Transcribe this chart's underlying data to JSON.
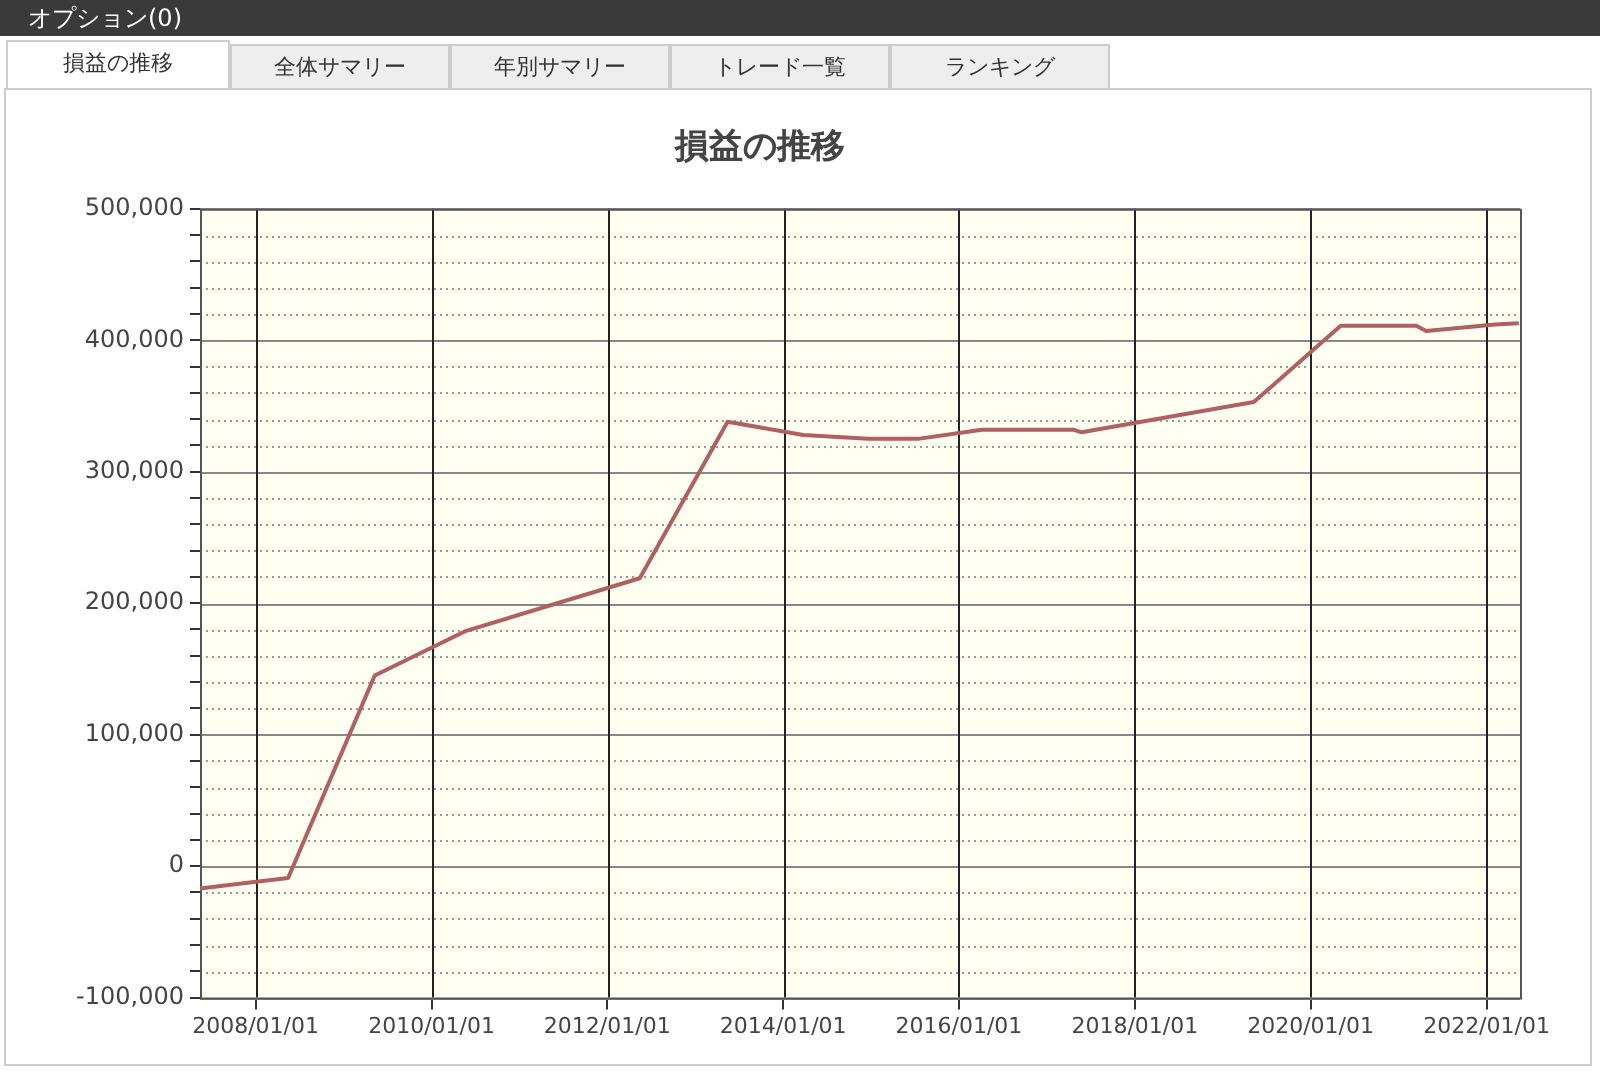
{
  "chart_data": {
    "type": "line",
    "title": "損益の推移",
    "annotations": [
      "オプション(0)",
      "損益の推移",
      "全体サマリー",
      "年別サマリー",
      "トレード一覧",
      "ランキング"
    ],
    "x": [
      "2007-05-15",
      "2008-05-15",
      "2009-05-10",
      "2010-05-25",
      "2012-05-15",
      "2013-05-15",
      "2014-03-25",
      "2014-12-20",
      "2015-07-15",
      "2016-04-05",
      "2017-04-20",
      "2017-05-25",
      "2019-05-10",
      "2020-05-05",
      "2021-03-15",
      "2021-04-25",
      "2022-02-05",
      "2022-05-15"
    ],
    "series": [
      {
        "color": "#b06060",
        "values": [
          -17000,
          -9000,
          145000,
          179000,
          219000,
          338000,
          328000,
          325000,
          325000,
          332000,
          332000,
          330000,
          353000,
          411000,
          411000,
          407000,
          412000,
          413000
        ]
      }
    ],
    "xlim": [
      "2007-05-15",
      "2022-05-20"
    ],
    "xticks": [
      {
        "value": "2008-01-01",
        "label": "2008/01/01"
      },
      {
        "value": "2010-01-01",
        "label": "2010/01/01"
      },
      {
        "value": "2012-01-01",
        "label": "2012/01/01"
      },
      {
        "value": "2014-01-01",
        "label": "2014/01/01"
      },
      {
        "value": "2016-01-01",
        "label": "2016/01/01"
      },
      {
        "value": "2018-01-01",
        "label": "2018/01/01"
      },
      {
        "value": "2020-01-01",
        "label": "2020/01/01"
      },
      {
        "value": "2022-01-01",
        "label": "2022/01/01"
      }
    ],
    "ylim": [
      -100000,
      500000
    ],
    "yticks": [
      {
        "value": -100000,
        "label": "-100,000"
      },
      {
        "value": -80000,
        "label": null
      },
      {
        "value": -60000,
        "label": null
      },
      {
        "value": -40000,
        "label": null
      },
      {
        "value": -20000,
        "label": null
      },
      {
        "value": 0,
        "label": "0"
      },
      {
        "value": 20000,
        "label": null
      },
      {
        "value": 40000,
        "label": null
      },
      {
        "value": 60000,
        "label": null
      },
      {
        "value": 80000,
        "label": null
      },
      {
        "value": 100000,
        "label": "100,000"
      },
      {
        "value": 120000,
        "label": null
      },
      {
        "value": 140000,
        "label": null
      },
      {
        "value": 160000,
        "label": null
      },
      {
        "value": 180000,
        "label": null
      },
      {
        "value": 200000,
        "label": "200,000"
      },
      {
        "value": 220000,
        "label": null
      },
      {
        "value": 240000,
        "label": null
      },
      {
        "value": 260000,
        "label": null
      },
      {
        "value": 280000,
        "label": null
      },
      {
        "value": 300000,
        "label": "300,000"
      },
      {
        "value": 320000,
        "label": null
      },
      {
        "value": 340000,
        "label": null
      },
      {
        "value": 360000,
        "label": null
      },
      {
        "value": 380000,
        "label": null
      },
      {
        "value": 400000,
        "label": "400,000"
      },
      {
        "value": 420000,
        "label": null
      },
      {
        "value": 440000,
        "label": null
      },
      {
        "value": 460000,
        "label": null
      },
      {
        "value": 480000,
        "label": null
      },
      {
        "value": 500000,
        "label": "500,000"
      }
    ],
    "grid": true,
    "legend": false,
    "marker": "none",
    "line_style": "solid"
  }
}
